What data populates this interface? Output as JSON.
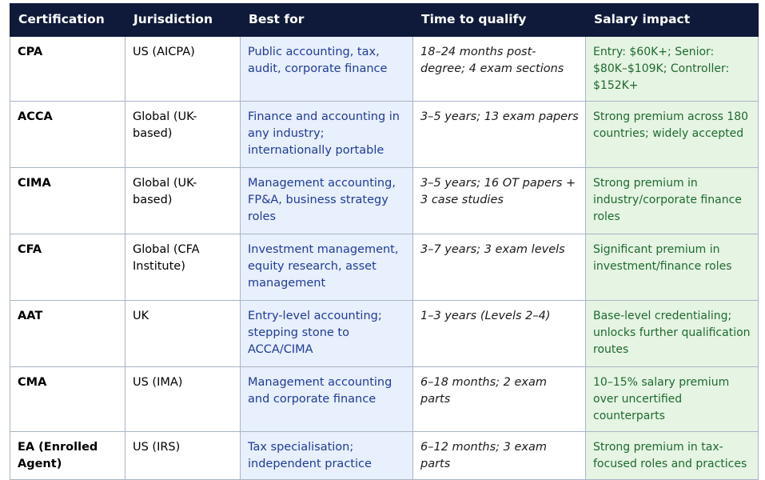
{
  "colors": {
    "header_bg": "#0f1a3a",
    "best_for_bg": "#e8effd",
    "best_for_text": "#1f3c99",
    "salary_bg": "#e6f4e4",
    "salary_text": "#1d6b2d",
    "border": "#a9b4c6"
  },
  "table": {
    "headers": [
      "Certification",
      "Jurisdiction",
      "Best for",
      "Time to qualify",
      "Salary impact"
    ],
    "rows": [
      {
        "certification": "CPA",
        "jurisdiction": "US (AICPA)",
        "best_for": "Public accounting, tax, audit, corporate finance",
        "time_to_qualify": "18–24 months post-degree; 4 exam sections",
        "salary_impact": "Entry: $60K+; Senior: $80K–$109K; Controller: $152K+"
      },
      {
        "certification": "ACCA",
        "jurisdiction": "Global (UK-based)",
        "best_for": "Finance and accounting in any industry; internationally portable",
        "time_to_qualify": "3–5 years; 13 exam papers",
        "salary_impact": "Strong premium across 180 countries; widely accepted"
      },
      {
        "certification": "CIMA",
        "jurisdiction": "Global (UK-based)",
        "best_for": "Management accounting, FP&A, business strategy roles",
        "time_to_qualify": "3–5 years; 16 OT papers + 3 case studies",
        "salary_impact": "Strong premium in industry/corporate finance roles"
      },
      {
        "certification": "CFA",
        "jurisdiction": "Global (CFA Institute)",
        "best_for": "Investment management, equity research, asset management",
        "time_to_qualify": "3–7 years; 3 exam levels",
        "salary_impact": "Significant premium in investment/finance roles"
      },
      {
        "certification": "AAT",
        "jurisdiction": "UK",
        "best_for": "Entry-level accounting; stepping stone to ACCA/CIMA",
        "time_to_qualify": "1–3 years (Levels 2–4)",
        "salary_impact": "Base-level credentialing; unlocks further qualification routes"
      },
      {
        "certification": "CMA",
        "jurisdiction": "US (IMA)",
        "best_for": "Management accounting and corporate finance",
        "time_to_qualify": "6–18 months; 2 exam parts",
        "salary_impact": "10–15% salary premium over uncertified counterparts"
      },
      {
        "certification": "EA (Enrolled Agent)",
        "jurisdiction": "US (IRS)",
        "best_for": "Tax specialisation; independent practice",
        "time_to_qualify": "6–12 months; 3 exam parts",
        "salary_impact": "Strong premium in tax-focused roles and practices"
      }
    ]
  }
}
